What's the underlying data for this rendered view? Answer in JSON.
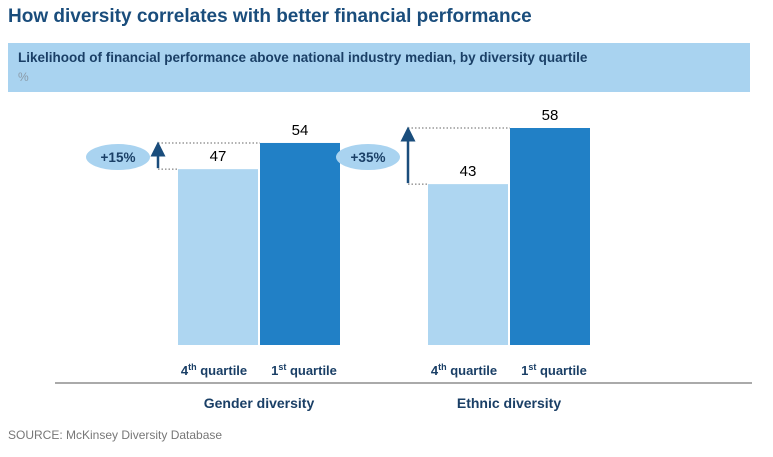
{
  "header": {
    "title": "How diversity correlates with better financial performance",
    "subtitle": "Likelihood of financial performance above national industry median, by diversity quartile",
    "unit": "%"
  },
  "source": "SOURCE: McKinsey Diversity Database",
  "colors": {
    "title": "#1a4d7c",
    "banner": "#a9d3f0",
    "bar_4th": "#aed6f1",
    "bar_1st": "#2180c6",
    "badge": "#a9d3f0",
    "arrow": "#1a4d7c"
  },
  "chart_data": {
    "type": "bar",
    "categories": [
      "Gender diversity",
      "Ethnic diversity"
    ],
    "series": [
      {
        "values": [
          47,
          43
        ]
      },
      {
        "values": [
          54,
          58
        ]
      }
    ],
    "bar_labels": [
      {
        "base": "4",
        "sup": "th",
        "text": " quartile"
      },
      {
        "base": "1",
        "sup": "st",
        "text": " quartile"
      }
    ],
    "uplift_labels": [
      "+15%",
      "+35%"
    ],
    "ylim": [
      0,
      58
    ]
  }
}
